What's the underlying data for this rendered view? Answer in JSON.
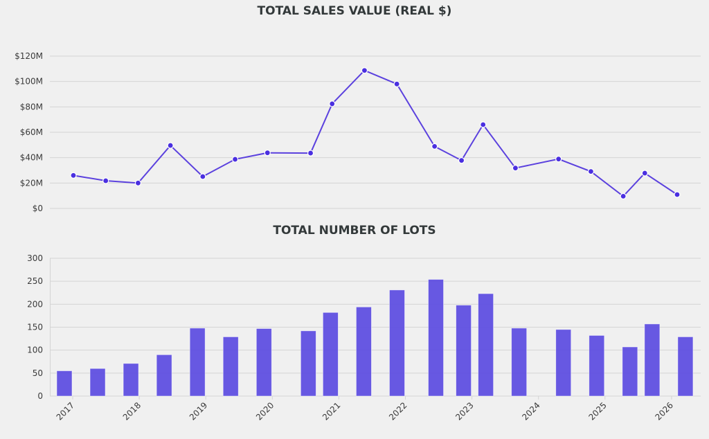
{
  "colors": {
    "background": "#f0f0f0",
    "line": "#5b41de",
    "marker": "#4a2fe0",
    "bar": "#5f4fe0",
    "grid": "#d4d4d4"
  },
  "chart_data": [
    {
      "type": "line",
      "title": "TOTAL SALES VALUE (REAL $)",
      "xlabel": "",
      "ylabel": "",
      "ylim": [
        0,
        120
      ],
      "y_unit": "$M",
      "yticks": [
        0,
        20,
        40,
        60,
        80,
        100,
        120
      ],
      "ytick_labels": [
        "$0",
        "$20M",
        "$40M",
        "$60M",
        "$80M",
        "$100M",
        "$120M"
      ],
      "grid": true,
      "x": [
        "2016-11",
        "2017-05",
        "2017-11",
        "2018-05",
        "2018-11",
        "2019-05",
        "2019-11",
        "2020-07",
        "2020-11",
        "2021-05",
        "2021-11",
        "2022-06",
        "2022-11",
        "2023-03",
        "2023-09",
        "2024-05",
        "2024-11",
        "2025-05",
        "2025-09",
        "2026-03"
      ],
      "values": [
        26.0,
        21.8,
        20.0,
        49.6,
        25.1,
        38.7,
        43.8,
        43.6,
        82.4,
        108.7,
        98.0,
        48.9,
        37.8,
        66.0,
        31.8,
        38.9,
        29.1,
        9.6,
        27.8,
        10.9
      ]
    },
    {
      "type": "bar",
      "title": "TOTAL NUMBER OF LOTS",
      "xlabel": "",
      "ylabel": "",
      "ylim": [
        0,
        300
      ],
      "yticks": [
        0,
        50,
        100,
        150,
        200,
        250,
        300
      ],
      "ytick_labels": [
        "0",
        "50",
        "100",
        "150",
        "200",
        "250",
        "300"
      ],
      "xticks": [
        "2017",
        "2018",
        "2019",
        "2020",
        "2021",
        "2022",
        "2023",
        "2024",
        "2025",
        "2026"
      ],
      "grid": true,
      "x": [
        "2016-11",
        "2017-05",
        "2017-11",
        "2018-05",
        "2018-11",
        "2019-05",
        "2019-11",
        "2020-07",
        "2020-11",
        "2021-05",
        "2021-11",
        "2022-06",
        "2022-11",
        "2023-03",
        "2023-09",
        "2024-05",
        "2024-11",
        "2025-05",
        "2025-09",
        "2026-03"
      ],
      "values": [
        55,
        60,
        71,
        90,
        148,
        129,
        147,
        142,
        182,
        194,
        231,
        254,
        198,
        223,
        148,
        145,
        132,
        107,
        157,
        129
      ]
    }
  ]
}
